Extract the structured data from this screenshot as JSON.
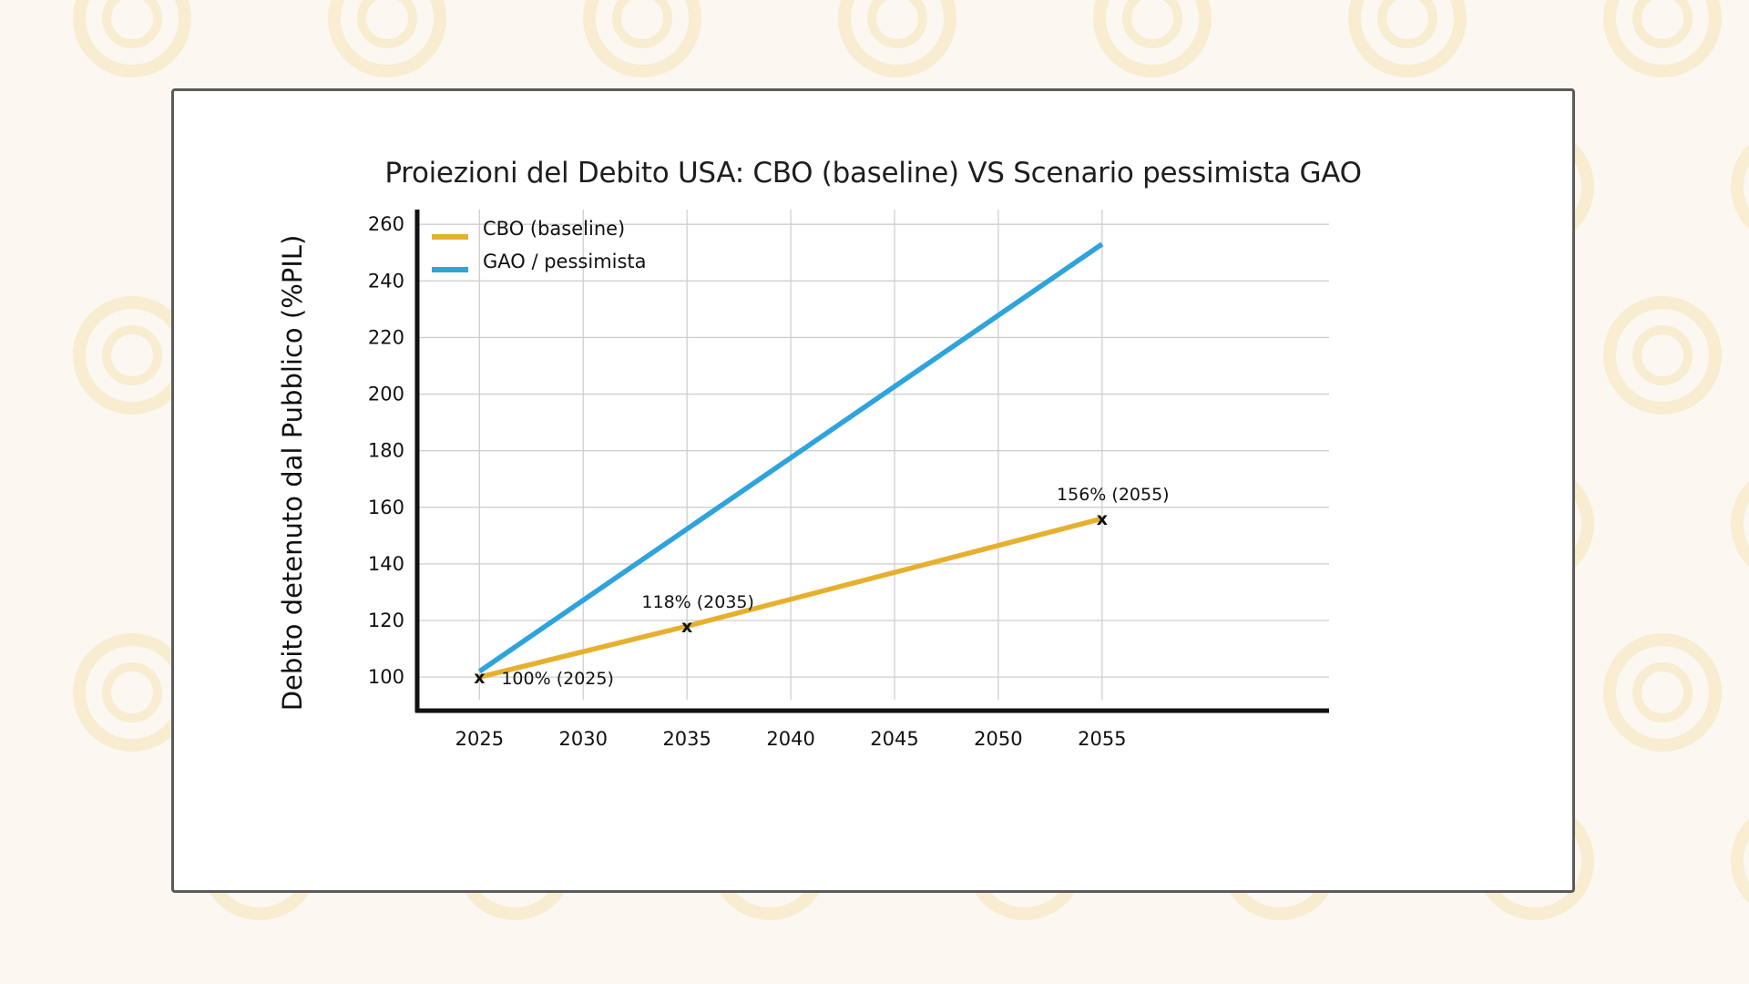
{
  "colors": {
    "cbo": "#e6b02f",
    "gao": "#2fa3dc",
    "background": "#fcf8f1",
    "pattern": "#f5e3b8"
  },
  "chart_data": {
    "type": "line",
    "title": "Proiezioni del Debito USA: CBO (baseline) VS Scenario pessimista GAO",
    "xlabel": "",
    "ylabel": "Debito detenuto dal Pubblico (%PIL)",
    "xlim": [
      2022,
      2056.5
    ],
    "ylim": [
      92,
      262
    ],
    "x_ticks": [
      "2025",
      "2030",
      "2035",
      "2040",
      "2045",
      "2050",
      "2055"
    ],
    "y_ticks": [
      "100",
      "120",
      "140",
      "160",
      "180",
      "200",
      "220",
      "240",
      "260"
    ],
    "grid": true,
    "legend_position": "top-left",
    "series": [
      {
        "name": "CBO (baseline)",
        "color": "#e6b02f",
        "x": [
          2025,
          2035,
          2055
        ],
        "y": [
          100,
          118,
          156
        ]
      },
      {
        "name": "GAO / pessimista",
        "color": "#2fa3dc",
        "x": [
          2025,
          2055
        ],
        "y": [
          102,
          253
        ]
      }
    ],
    "annotations": [
      {
        "text": "100% (2025)",
        "x": 2025,
        "y": 100
      },
      {
        "text": "118% (2035)",
        "x": 2035,
        "y": 118
      },
      {
        "text": "156% (2055)",
        "x": 2055,
        "y": 156
      }
    ]
  }
}
